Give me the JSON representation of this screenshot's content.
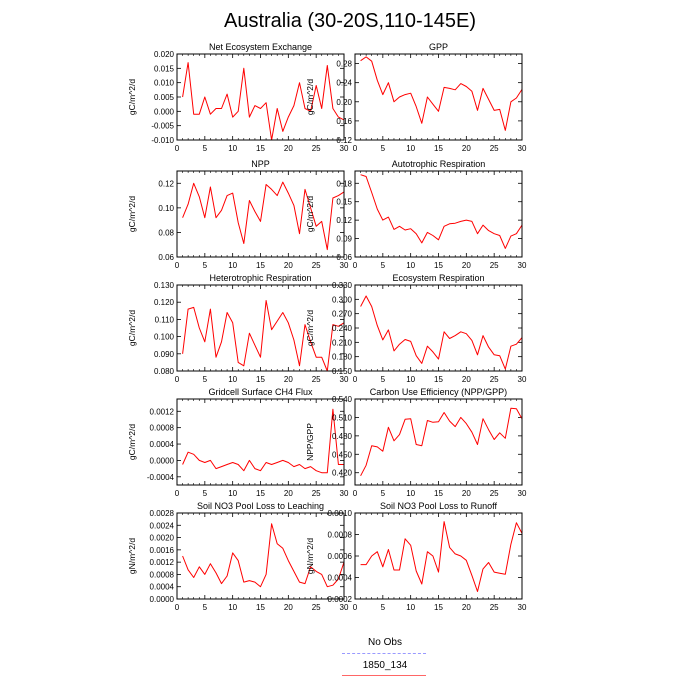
{
  "page": {
    "title": "Australia (30-20S,110-145E)"
  },
  "legend": {
    "entries": [
      {
        "label": "No Obs",
        "color": "#9999ff",
        "style": "dashed"
      },
      {
        "label": "1850_134",
        "color": "#ff6666",
        "style": "solid"
      }
    ]
  },
  "chart_data": [
    {
      "type": "line",
      "title": "Net Ecosystem Exchange",
      "ylabel": "gC/m^2/d",
      "xlim": [
        0,
        30
      ],
      "ylim": [
        -0.01,
        0.02
      ],
      "xticks": [
        0,
        5,
        10,
        15,
        20,
        25,
        30
      ],
      "xtick_labels": [
        "0",
        "5",
        "10",
        "15",
        "20",
        "25",
        "30"
      ],
      "yticks": [
        -0.01,
        -0.005,
        0.0,
        0.005,
        0.01,
        0.015,
        0.02
      ],
      "ytick_labels": [
        "-0.010",
        "-0.005",
        "0.000",
        "0.005",
        "0.010",
        "0.015",
        "0.020"
      ],
      "series": [
        {
          "color": "#ff0000",
          "x": [
            1,
            2,
            3,
            4,
            5,
            6,
            7,
            8,
            9,
            10,
            11,
            12,
            13,
            14,
            15,
            16,
            17,
            18,
            19,
            20,
            21,
            22,
            23,
            24,
            25,
            26,
            27,
            28,
            29,
            30
          ],
          "values": [
            0.005,
            0.017,
            -0.001,
            -0.001,
            0.005,
            -0.001,
            0.001,
            0.001,
            0.006,
            -0.002,
            0.0,
            0.015,
            -0.002,
            0.002,
            0.001,
            0.003,
            -0.01,
            0.001,
            -0.007,
            -0.002,
            0.002,
            0.01,
            0.001,
            0.0,
            0.009,
            0.001,
            0.016,
            0.001,
            -0.002,
            -0.003
          ]
        }
      ]
    },
    {
      "type": "line",
      "title": "GPP",
      "ylabel": "gC/m^2/d",
      "xlim": [
        0,
        30
      ],
      "ylim": [
        0.12,
        0.3
      ],
      "xticks": [
        0,
        5,
        10,
        15,
        20,
        25,
        30
      ],
      "xtick_labels": [
        "0",
        "5",
        "10",
        "15",
        "20",
        "25",
        "30"
      ],
      "yticks": [
        0.12,
        0.16,
        0.2,
        0.24,
        0.28
      ],
      "ytick_labels": [
        "0.12",
        "0.16",
        "0.20",
        "0.24",
        "0.28"
      ],
      "series": [
        {
          "color": "#ff0000",
          "x": [
            1,
            2,
            3,
            4,
            5,
            6,
            7,
            8,
            9,
            10,
            11,
            12,
            13,
            14,
            15,
            16,
            17,
            18,
            19,
            20,
            21,
            22,
            23,
            24,
            25,
            26,
            27,
            28,
            29,
            30
          ],
          "values": [
            0.286,
            0.294,
            0.285,
            0.245,
            0.215,
            0.24,
            0.2,
            0.21,
            0.215,
            0.218,
            0.19,
            0.155,
            0.21,
            0.195,
            0.18,
            0.23,
            0.228,
            0.225,
            0.238,
            0.232,
            0.222,
            0.182,
            0.228,
            0.205,
            0.182,
            0.184,
            0.14,
            0.2,
            0.208,
            0.226
          ]
        }
      ]
    },
    {
      "type": "line",
      "title": "NPP",
      "ylabel": "gC/m^2/d",
      "xlim": [
        0,
        30
      ],
      "ylim": [
        0.06,
        0.13
      ],
      "xticks": [
        0,
        5,
        10,
        15,
        20,
        25,
        30
      ],
      "xtick_labels": [
        "0",
        "5",
        "10",
        "15",
        "20",
        "25",
        "30"
      ],
      "yticks": [
        0.06,
        0.08,
        0.1,
        0.12
      ],
      "ytick_labels": [
        "0.06",
        "0.08",
        "0.10",
        "0.12"
      ],
      "series": [
        {
          "color": "#ff0000",
          "x": [
            1,
            2,
            3,
            4,
            5,
            6,
            7,
            8,
            9,
            10,
            11,
            12,
            13,
            14,
            15,
            16,
            17,
            18,
            19,
            20,
            21,
            22,
            23,
            24,
            25,
            26,
            27,
            28,
            29,
            30
          ],
          "values": [
            0.092,
            0.103,
            0.12,
            0.109,
            0.092,
            0.117,
            0.092,
            0.098,
            0.11,
            0.112,
            0.088,
            0.071,
            0.106,
            0.097,
            0.089,
            0.119,
            0.115,
            0.11,
            0.121,
            0.112,
            0.102,
            0.079,
            0.115,
            0.1,
            0.085,
            0.089,
            0.066,
            0.108,
            0.11,
            0.113
          ]
        }
      ]
    },
    {
      "type": "line",
      "title": "Autotrophic Respiration",
      "ylabel": "gC/m^2/d",
      "xlim": [
        0,
        30
      ],
      "ylim": [
        0.06,
        0.2
      ],
      "xticks": [
        0,
        5,
        10,
        15,
        20,
        25,
        30
      ],
      "xtick_labels": [
        "0",
        "5",
        "10",
        "15",
        "20",
        "25",
        "30"
      ],
      "yticks": [
        0.06,
        0.09,
        0.12,
        0.15,
        0.18
      ],
      "ytick_labels": [
        "0.06",
        "0.09",
        "0.12",
        "0.15",
        "0.18"
      ],
      "series": [
        {
          "color": "#ff0000",
          "x": [
            1,
            2,
            3,
            4,
            5,
            6,
            7,
            8,
            9,
            10,
            11,
            12,
            13,
            14,
            15,
            16,
            17,
            18,
            19,
            20,
            21,
            22,
            23,
            24,
            25,
            26,
            27,
            28,
            29,
            30
          ],
          "values": [
            0.194,
            0.191,
            0.165,
            0.138,
            0.12,
            0.125,
            0.105,
            0.11,
            0.104,
            0.106,
            0.098,
            0.083,
            0.1,
            0.095,
            0.088,
            0.11,
            0.114,
            0.115,
            0.118,
            0.12,
            0.118,
            0.098,
            0.112,
            0.103,
            0.098,
            0.095,
            0.074,
            0.094,
            0.098,
            0.112
          ]
        }
      ]
    },
    {
      "type": "line",
      "title": "Heterotrophic Respiration",
      "ylabel": "gC/m^2/d",
      "xlim": [
        0,
        30
      ],
      "ylim": [
        0.08,
        0.13
      ],
      "xticks": [
        0,
        5,
        10,
        15,
        20,
        25,
        30
      ],
      "xtick_labels": [
        "0",
        "5",
        "10",
        "15",
        "20",
        "25",
        "30"
      ],
      "yticks": [
        0.08,
        0.09,
        0.1,
        0.11,
        0.12,
        0.13
      ],
      "ytick_labels": [
        "0.080",
        "0.090",
        "0.100",
        "0.110",
        "0.120",
        "0.130"
      ],
      "series": [
        {
          "color": "#ff0000",
          "x": [
            1,
            2,
            3,
            4,
            5,
            6,
            7,
            8,
            9,
            10,
            11,
            12,
            13,
            14,
            15,
            16,
            17,
            18,
            19,
            20,
            21,
            22,
            23,
            24,
            25,
            26,
            27,
            28,
            29,
            30
          ],
          "values": [
            0.09,
            0.116,
            0.117,
            0.105,
            0.097,
            0.116,
            0.088,
            0.097,
            0.114,
            0.108,
            0.085,
            0.083,
            0.102,
            0.095,
            0.088,
            0.121,
            0.104,
            0.109,
            0.114,
            0.108,
            0.098,
            0.083,
            0.107,
            0.097,
            0.088,
            0.088,
            0.08,
            0.107,
            0.106,
            0.108
          ]
        }
      ]
    },
    {
      "type": "line",
      "title": "Ecosystem Respiration",
      "ylabel": "gC/m^2/d",
      "xlim": [
        0,
        30
      ],
      "ylim": [
        0.15,
        0.33
      ],
      "xticks": [
        0,
        5,
        10,
        15,
        20,
        25,
        30
      ],
      "xtick_labels": [
        "0",
        "5",
        "10",
        "15",
        "20",
        "25",
        "30"
      ],
      "yticks": [
        0.15,
        0.18,
        0.21,
        0.24,
        0.27,
        0.3,
        0.33
      ],
      "ytick_labels": [
        "0.150",
        "0.180",
        "0.210",
        "0.240",
        "0.270",
        "0.300",
        "0.330"
      ],
      "series": [
        {
          "color": "#ff0000",
          "x": [
            1,
            2,
            3,
            4,
            5,
            6,
            7,
            8,
            9,
            10,
            11,
            12,
            13,
            14,
            15,
            16,
            17,
            18,
            19,
            20,
            21,
            22,
            23,
            24,
            25,
            26,
            27,
            28,
            29,
            30
          ],
          "values": [
            0.285,
            0.307,
            0.285,
            0.245,
            0.215,
            0.236,
            0.192,
            0.206,
            0.216,
            0.212,
            0.182,
            0.166,
            0.202,
            0.19,
            0.175,
            0.232,
            0.218,
            0.224,
            0.232,
            0.228,
            0.214,
            0.184,
            0.224,
            0.2,
            0.184,
            0.182,
            0.154,
            0.202,
            0.206,
            0.22
          ]
        }
      ]
    },
    {
      "type": "line",
      "title": "Gridcell Surface CH4 Flux",
      "ylabel": "gC/m^2/d",
      "xlim": [
        0,
        30
      ],
      "ylim": [
        -0.0006,
        0.0015
      ],
      "xticks": [
        0,
        5,
        10,
        15,
        20,
        25,
        30
      ],
      "xtick_labels": [
        "0",
        "5",
        "10",
        "15",
        "20",
        "25",
        "30"
      ],
      "yticks": [
        -0.0004,
        0.0,
        0.0004,
        0.0008,
        0.0012
      ],
      "ytick_labels": [
        "-0.0004",
        "0.0000",
        "0.0004",
        "0.0008",
        "0.0012"
      ],
      "series": [
        {
          "color": "#ff0000",
          "x": [
            1,
            2,
            3,
            4,
            5,
            6,
            7,
            8,
            9,
            10,
            11,
            12,
            13,
            14,
            15,
            16,
            17,
            18,
            19,
            20,
            21,
            22,
            23,
            24,
            25,
            26,
            27,
            28,
            29,
            30
          ],
          "values": [
            -0.0001,
            0.0002,
            0.00015,
            0.0,
            -5e-05,
            0.0,
            -0.0002,
            -0.00015,
            -0.0001,
            -5e-05,
            -0.0001,
            -0.00025,
            0.0,
            -0.0002,
            -0.00025,
            -5e-05,
            -0.0001,
            -5e-05,
            0.0,
            -5e-05,
            -0.00015,
            -0.0001,
            -0.0002,
            -0.00015,
            -0.00025,
            -0.0003,
            -0.0003,
            0.00125,
            -0.0001,
            -0.0001
          ]
        }
      ]
    },
    {
      "type": "line",
      "title": "Carbon Use Efficiency (NPP/GPP)",
      "ylabel": "NPP/GPP",
      "xlim": [
        0,
        30
      ],
      "ylim": [
        0.4,
        0.54
      ],
      "xticks": [
        0,
        5,
        10,
        15,
        20,
        25,
        30
      ],
      "xtick_labels": [
        "0",
        "5",
        "10",
        "15",
        "20",
        "25",
        "30"
      ],
      "yticks": [
        0.42,
        0.45,
        0.48,
        0.51,
        0.54
      ],
      "ytick_labels": [
        "0.420",
        "0.450",
        "0.480",
        "0.510",
        "0.540"
      ],
      "series": [
        {
          "color": "#ff0000",
          "x": [
            1,
            2,
            3,
            4,
            5,
            6,
            7,
            8,
            9,
            10,
            11,
            12,
            13,
            14,
            15,
            16,
            17,
            18,
            19,
            20,
            21,
            22,
            23,
            24,
            25,
            26,
            27,
            28,
            29,
            30
          ],
          "values": [
            0.415,
            0.432,
            0.464,
            0.462,
            0.455,
            0.494,
            0.472,
            0.482,
            0.507,
            0.508,
            0.466,
            0.464,
            0.505,
            0.502,
            0.503,
            0.518,
            0.504,
            0.495,
            0.51,
            0.5,
            0.486,
            0.466,
            0.508,
            0.49,
            0.474,
            0.485,
            0.476,
            0.525,
            0.524,
            0.508
          ]
        }
      ]
    },
    {
      "type": "line",
      "title": "Soil NO3 Pool Loss to Leaching",
      "ylabel": "gN/m^2/d",
      "xlim": [
        0,
        30
      ],
      "ylim": [
        0.0,
        0.0028
      ],
      "xticks": [
        0,
        5,
        10,
        15,
        20,
        25,
        30
      ],
      "xtick_labels": [
        "0",
        "5",
        "10",
        "15",
        "20",
        "25",
        "30"
      ],
      "yticks": [
        0.0,
        0.0004,
        0.0008,
        0.0012,
        0.0016,
        0.002,
        0.0024,
        0.0028
      ],
      "ytick_labels": [
        "0.0000",
        "0.0004",
        "0.0008",
        "0.0012",
        "0.0016",
        "0.0020",
        "0.0024",
        "0.0028"
      ],
      "series": [
        {
          "color": "#ff0000",
          "x": [
            1,
            2,
            3,
            4,
            5,
            6,
            7,
            8,
            9,
            10,
            11,
            12,
            13,
            14,
            15,
            16,
            17,
            18,
            19,
            20,
            21,
            22,
            23,
            24,
            25,
            26,
            27,
            28,
            29,
            30
          ],
          "values": [
            0.0014,
            0.00095,
            0.0007,
            0.00105,
            0.0008,
            0.00115,
            0.00085,
            0.0005,
            0.00075,
            0.0015,
            0.00125,
            0.00055,
            0.0006,
            0.00055,
            0.0004,
            0.0008,
            0.00245,
            0.0018,
            0.00165,
            0.00125,
            0.0009,
            0.00055,
            0.0005,
            0.00105,
            0.0009,
            0.0008,
            0.0004,
            0.00045,
            0.00065,
            0.0012
          ]
        }
      ]
    },
    {
      "type": "line",
      "title": "Soil NO3 Pool Loss to Runoff",
      "ylabel": "gN/m^2/d",
      "xlim": [
        0,
        30
      ],
      "ylim": [
        0.0002,
        0.001
      ],
      "xticks": [
        0,
        5,
        10,
        15,
        20,
        25,
        30
      ],
      "xtick_labels": [
        "0",
        "5",
        "10",
        "15",
        "20",
        "25",
        "30"
      ],
      "yticks": [
        0.0002,
        0.0004,
        0.0006,
        0.0008,
        0.001
      ],
      "ytick_labels": [
        "0.0002",
        "0.0004",
        "0.0006",
        "0.0008",
        "0.0010"
      ],
      "series": [
        {
          "color": "#ff0000",
          "x": [
            1,
            2,
            3,
            4,
            5,
            6,
            7,
            8,
            9,
            10,
            11,
            12,
            13,
            14,
            15,
            16,
            17,
            18,
            19,
            20,
            21,
            22,
            23,
            24,
            25,
            26,
            27,
            28,
            29,
            30
          ],
          "values": [
            0.00052,
            0.00052,
            0.0006,
            0.00064,
            0.0005,
            0.00066,
            0.00047,
            0.00047,
            0.00076,
            0.0007,
            0.00046,
            0.00034,
            0.00064,
            0.0006,
            0.00045,
            0.00092,
            0.00068,
            0.00062,
            0.0006,
            0.00056,
            0.00042,
            0.00027,
            0.00048,
            0.00054,
            0.00045,
            0.00044,
            0.00043,
            0.00071,
            0.00091,
            0.00081
          ]
        }
      ]
    }
  ]
}
